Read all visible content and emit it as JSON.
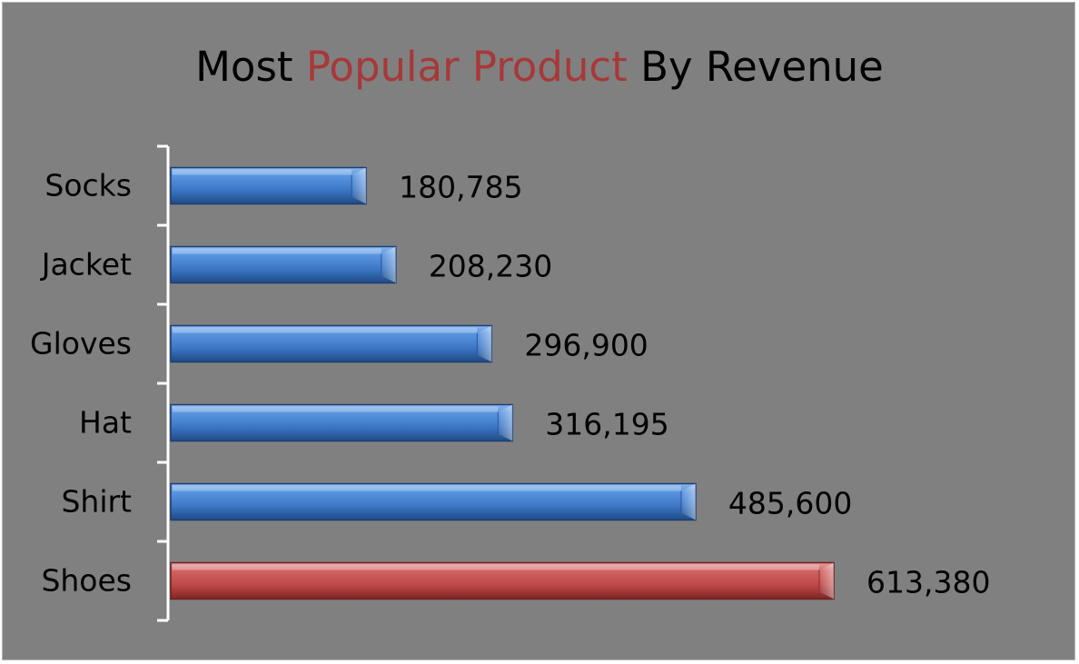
{
  "chart_data": {
    "type": "bar",
    "orientation": "horizontal",
    "title": "Most Popular Product By Revenue",
    "title_parts": [
      {
        "text": "Most ",
        "highlight": false
      },
      {
        "text": "Popular Product",
        "highlight": true
      },
      {
        "text": " By Revenue",
        "highlight": false
      }
    ],
    "categories": [
      "Socks",
      "Jacket",
      "Gloves",
      "Hat",
      "Shirt",
      "Shoes"
    ],
    "values": [
      180785,
      208230,
      296900,
      316195,
      485600,
      613380
    ],
    "value_labels": [
      "180,785",
      "208,230",
      "296,900",
      "316,195",
      "485,600",
      "613,380"
    ],
    "highlighted_category": "Shoes",
    "xlim": [
      0,
      613380
    ],
    "grid": false,
    "legend": "none",
    "colors": {
      "background": "#808080",
      "bar": "#3d78c8",
      "bar_highlight": "#c04848",
      "title_text": "#000000",
      "title_highlight": "#a83838",
      "axis": "#ffffff"
    }
  }
}
